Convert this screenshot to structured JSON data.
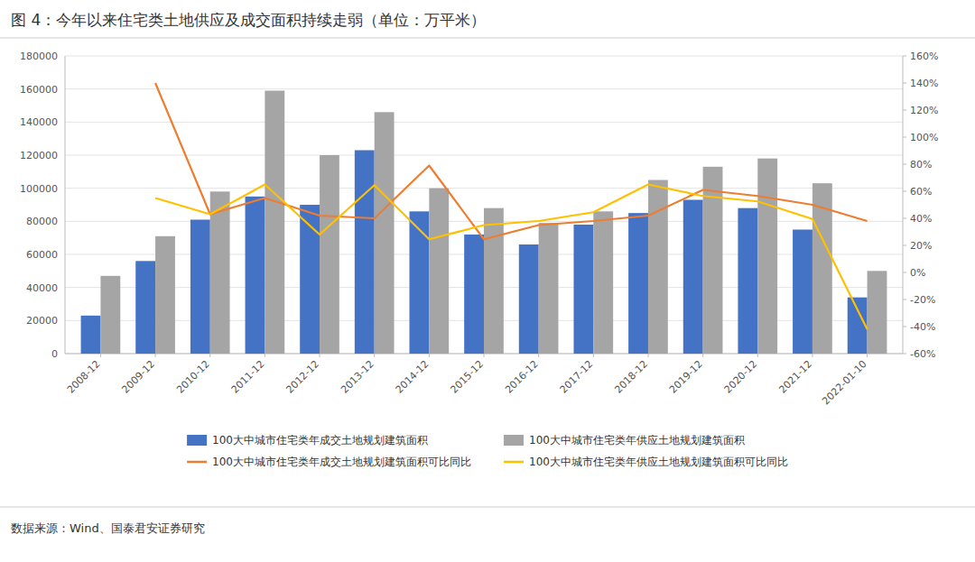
{
  "chart_data": {
    "type": "bar",
    "title": "图 4：今年以来住宅类土地供应及成交面积持续走弱（单位：万平米）",
    "source": "数据来源：Wind、国泰君安证券研究",
    "categories": [
      "2008-12",
      "2009-12",
      "2010-12",
      "2011-12",
      "2012-12",
      "2013-12",
      "2014-12",
      "2015-12",
      "2016-12",
      "2017-12",
      "2018-12",
      "2019-12",
      "2020-12",
      "2021-12",
      "2022-01-10"
    ],
    "series": [
      {
        "name": "100大中城市住宅类年成交土地规划建筑面积",
        "type": "bar",
        "color": "#4472C4",
        "values": [
          23000,
          56000,
          81000,
          95000,
          90000,
          123000,
          86000,
          72000,
          66000,
          78000,
          85000,
          93000,
          88000,
          75000,
          34000
        ]
      },
      {
        "name": "100大中城市住宅类年供应土地规划建筑面积",
        "type": "bar",
        "color": "#A5A5A5",
        "values": [
          47000,
          71000,
          98000,
          159000,
          120000,
          146000,
          100000,
          88000,
          79000,
          86000,
          105000,
          113000,
          118000,
          103000,
          50000
        ]
      },
      {
        "name": "100大中城市住宅类年成交土地规划建筑面积可比同比",
        "type": "line",
        "axis": "y2",
        "color": "#ED7D31",
        "values": [
          null,
          1.4,
          0.43,
          0.55,
          0.42,
          0.4,
          0.79,
          0.245,
          0.35,
          0.38,
          0.42,
          0.61,
          0.565,
          0.5,
          0.38
        ]
      },
      {
        "name": "100大中城市住宅类年供应土地规划建筑面积可比同比",
        "type": "line",
        "axis": "y2",
        "color": "#FFC000",
        "values": [
          null,
          0.55,
          0.43,
          0.65,
          0.28,
          0.645,
          0.245,
          0.35,
          0.38,
          0.445,
          0.65,
          0.565,
          0.525,
          0.395,
          -0.42
        ]
      }
    ],
    "ylim": [
      0,
      180000
    ],
    "yticks": [
      0,
      20000,
      40000,
      60000,
      80000,
      100000,
      120000,
      140000,
      160000,
      180000
    ],
    "y2lim": [
      -0.6,
      1.6
    ],
    "y2ticks": [
      {
        "value": -0.6,
        "label": "-60%"
      },
      {
        "value": -0.4,
        "label": "-40%"
      },
      {
        "value": -0.2,
        "label": "-20%"
      },
      {
        "value": 0.0,
        "label": "0%"
      },
      {
        "value": 0.2,
        "label": "20%"
      },
      {
        "value": 0.4,
        "label": "40%"
      },
      {
        "value": 0.6,
        "label": "60%"
      },
      {
        "value": 0.8,
        "label": "80%"
      },
      {
        "value": 1.0,
        "label": "100%"
      },
      {
        "value": 1.2,
        "label": "120%"
      },
      {
        "value": 1.4,
        "label": "140%"
      },
      {
        "value": 1.6,
        "label": "160%"
      }
    ],
    "grid": true,
    "legend": "bottom"
  }
}
